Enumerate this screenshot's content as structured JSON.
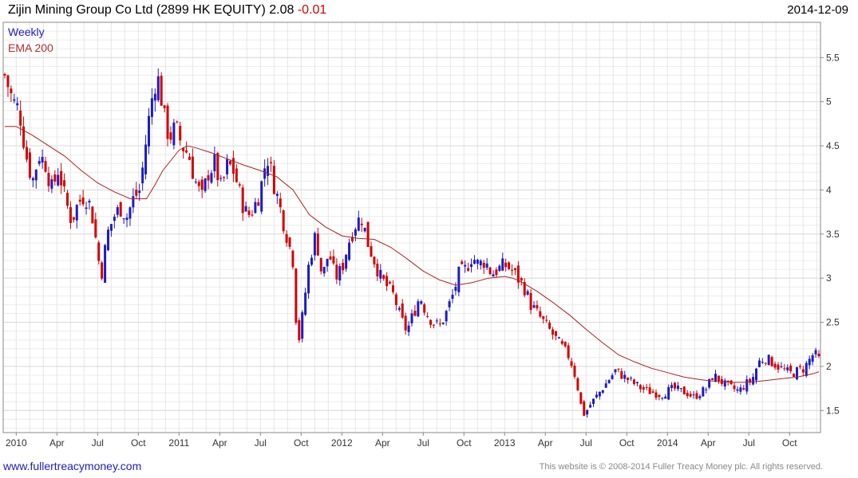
{
  "header": {
    "title": "Zijin Mining Group Co Ltd (2899 HK EQUITY)",
    "price": "2.08",
    "change": "-0.01",
    "date": "2014-12-09"
  },
  "legend": {
    "weekly": "Weekly",
    "ema": "EMA 200"
  },
  "footer": {
    "link": "www.fullertreacymoney.com",
    "copyright": "This website is © 2008-2014 Fuller Treacy Money plc. All rights reserved."
  },
  "colors": {
    "up": "#1c1cc8",
    "down": "#d40000",
    "ema": "#b02020",
    "grid": "#d9d9d9"
  },
  "chart_data": {
    "type": "candlestick",
    "frequency": "weekly",
    "y_ticks": [
      1.5,
      2,
      2.5,
      3,
      3.5,
      4,
      4.5,
      5,
      5.5
    ],
    "ylim": [
      1.25,
      5.9
    ],
    "x_ticks": [
      "2010",
      "Apr",
      "Jul",
      "Oct",
      "2011",
      "Apr",
      "Jul",
      "Oct",
      "2012",
      "Apr",
      "Jul",
      "Oct",
      "2013",
      "Apr",
      "Jul",
      "Oct",
      "2014",
      "Apr",
      "Jul",
      "Oct"
    ],
    "x_tick_years": [
      2010,
      2010.25,
      2010.5,
      2010.75,
      2011,
      2011.25,
      2011.5,
      2011.75,
      2012,
      2012.25,
      2012.5,
      2012.75,
      2013,
      2013.25,
      2013.5,
      2013.75,
      2014,
      2014.25,
      2014.5,
      2014.75
    ],
    "x_range": [
      2009.92,
      2014.94
    ],
    "close_path": [
      [
        2009.93,
        5.3
      ],
      [
        2009.98,
        5.0
      ],
      [
        2010.02,
        4.9
      ],
      [
        2010.06,
        4.4
      ],
      [
        2010.1,
        4.1
      ],
      [
        2010.14,
        4.4
      ],
      [
        2010.18,
        4.3
      ],
      [
        2010.22,
        4.0
      ],
      [
        2010.26,
        4.25
      ],
      [
        2010.3,
        3.9
      ],
      [
        2010.34,
        3.65
      ],
      [
        2010.38,
        3.85
      ],
      [
        2010.42,
        3.95
      ],
      [
        2010.46,
        3.8
      ],
      [
        2010.5,
        3.3
      ],
      [
        2010.52,
        3.0
      ],
      [
        2010.56,
        3.5
      ],
      [
        2010.6,
        3.7
      ],
      [
        2010.64,
        3.8
      ],
      [
        2010.68,
        3.7
      ],
      [
        2010.72,
        3.9
      ],
      [
        2010.76,
        4.0
      ],
      [
        2010.8,
        4.6
      ],
      [
        2010.83,
        5.0
      ],
      [
        2010.86,
        5.3
      ],
      [
        2010.88,
        5.2
      ],
      [
        2010.91,
        4.8
      ],
      [
        2010.94,
        4.6
      ],
      [
        2010.98,
        4.7
      ],
      [
        2011.02,
        4.5
      ],
      [
        2011.06,
        4.4
      ],
      [
        2011.1,
        4.1
      ],
      [
        2011.14,
        3.9
      ],
      [
        2011.18,
        4.2
      ],
      [
        2011.22,
        4.3
      ],
      [
        2011.26,
        4.0
      ],
      [
        2011.3,
        4.3
      ],
      [
        2011.34,
        4.2
      ],
      [
        2011.38,
        3.9
      ],
      [
        2011.42,
        3.7
      ],
      [
        2011.46,
        3.8
      ],
      [
        2011.5,
        4.0
      ],
      [
        2011.54,
        4.4
      ],
      [
        2011.58,
        4.1
      ],
      [
        2011.62,
        3.8
      ],
      [
        2011.66,
        3.5
      ],
      [
        2011.7,
        3.2
      ],
      [
        2011.72,
        2.5
      ],
      [
        2011.74,
        2.3
      ],
      [
        2011.76,
        2.6
      ],
      [
        2011.8,
        3.2
      ],
      [
        2011.84,
        3.5
      ],
      [
        2011.88,
        3.0
      ],
      [
        2011.92,
        3.3
      ],
      [
        2011.96,
        3.0
      ],
      [
        2012.0,
        3.1
      ],
      [
        2012.04,
        3.4
      ],
      [
        2012.08,
        3.6
      ],
      [
        2012.12,
        3.7
      ],
      [
        2012.16,
        3.4
      ],
      [
        2012.2,
        3.2
      ],
      [
        2012.24,
        3.0
      ],
      [
        2012.28,
        2.9
      ],
      [
        2012.32,
        2.8
      ],
      [
        2012.36,
        2.55
      ],
      [
        2012.4,
        2.4
      ],
      [
        2012.44,
        2.6
      ],
      [
        2012.48,
        2.8
      ],
      [
        2012.52,
        2.6
      ],
      [
        2012.56,
        2.5
      ],
      [
        2012.6,
        2.45
      ],
      [
        2012.64,
        2.6
      ],
      [
        2012.68,
        2.8
      ],
      [
        2012.72,
        3.05
      ],
      [
        2012.76,
        3.1
      ],
      [
        2012.8,
        3.25
      ],
      [
        2012.84,
        3.15
      ],
      [
        2012.88,
        3.2
      ],
      [
        2012.92,
        3.05
      ],
      [
        2012.96,
        3.1
      ],
      [
        2013.0,
        3.15
      ],
      [
        2013.04,
        3.1
      ],
      [
        2013.08,
        3.0
      ],
      [
        2013.12,
        2.9
      ],
      [
        2013.16,
        2.7
      ],
      [
        2013.2,
        2.6
      ],
      [
        2013.24,
        2.5
      ],
      [
        2013.28,
        2.4
      ],
      [
        2013.32,
        2.3
      ],
      [
        2013.36,
        2.2
      ],
      [
        2013.4,
        2.1
      ],
      [
        2013.44,
        1.85
      ],
      [
        2013.47,
        1.55
      ],
      [
        2013.49,
        1.45
      ],
      [
        2013.52,
        1.55
      ],
      [
        2013.56,
        1.65
      ],
      [
        2013.6,
        1.75
      ],
      [
        2013.64,
        1.85
      ],
      [
        2013.68,
        1.95
      ],
      [
        2013.72,
        1.9
      ],
      [
        2013.76,
        1.85
      ],
      [
        2013.8,
        1.8
      ],
      [
        2013.84,
        1.75
      ],
      [
        2013.88,
        1.72
      ],
      [
        2013.92,
        1.7
      ],
      [
        2013.96,
        1.68
      ],
      [
        2014.0,
        1.72
      ],
      [
        2014.04,
        1.75
      ],
      [
        2014.08,
        1.72
      ],
      [
        2014.12,
        1.7
      ],
      [
        2014.16,
        1.65
      ],
      [
        2014.2,
        1.7
      ],
      [
        2014.24,
        1.75
      ],
      [
        2014.28,
        1.9
      ],
      [
        2014.32,
        1.85
      ],
      [
        2014.36,
        1.78
      ],
      [
        2014.4,
        1.75
      ],
      [
        2014.44,
        1.72
      ],
      [
        2014.48,
        1.8
      ],
      [
        2014.52,
        1.85
      ],
      [
        2014.56,
        2.05
      ],
      [
        2014.6,
        2.1
      ],
      [
        2014.64,
        2.05
      ],
      [
        2014.68,
        2.0
      ],
      [
        2014.72,
        1.95
      ],
      [
        2014.76,
        1.92
      ],
      [
        2014.8,
        1.95
      ],
      [
        2014.84,
        1.98
      ],
      [
        2014.88,
        2.1
      ],
      [
        2014.9,
        2.15
      ],
      [
        2014.93,
        2.08
      ]
    ],
    "ema_200": [
      [
        2009.93,
        4.72
      ],
      [
        2010.0,
        4.72
      ],
      [
        2010.1,
        4.62
      ],
      [
        2010.2,
        4.5
      ],
      [
        2010.3,
        4.38
      ],
      [
        2010.4,
        4.22
      ],
      [
        2010.5,
        4.08
      ],
      [
        2010.6,
        3.98
      ],
      [
        2010.7,
        3.9
      ],
      [
        2010.8,
        3.9
      ],
      [
        2010.85,
        4.05
      ],
      [
        2010.9,
        4.22
      ],
      [
        2011.0,
        4.45
      ],
      [
        2011.05,
        4.5
      ],
      [
        2011.1,
        4.48
      ],
      [
        2011.2,
        4.42
      ],
      [
        2011.3,
        4.35
      ],
      [
        2011.4,
        4.28
      ],
      [
        2011.5,
        4.22
      ],
      [
        2011.6,
        4.15
      ],
      [
        2011.7,
        4.0
      ],
      [
        2011.8,
        3.72
      ],
      [
        2011.9,
        3.58
      ],
      [
        2012.0,
        3.48
      ],
      [
        2012.1,
        3.45
      ],
      [
        2012.2,
        3.44
      ],
      [
        2012.3,
        3.35
      ],
      [
        2012.4,
        3.22
      ],
      [
        2012.5,
        3.08
      ],
      [
        2012.6,
        2.98
      ],
      [
        2012.7,
        2.92
      ],
      [
        2012.8,
        2.95
      ],
      [
        2012.9,
        3.0
      ],
      [
        2013.0,
        3.02
      ],
      [
        2013.05,
        3.0
      ],
      [
        2013.1,
        2.96
      ],
      [
        2013.2,
        2.85
      ],
      [
        2013.3,
        2.72
      ],
      [
        2013.4,
        2.58
      ],
      [
        2013.5,
        2.42
      ],
      [
        2013.6,
        2.27
      ],
      [
        2013.7,
        2.13
      ],
      [
        2013.8,
        2.05
      ],
      [
        2013.9,
        1.98
      ],
      [
        2014.0,
        1.93
      ],
      [
        2014.1,
        1.88
      ],
      [
        2014.2,
        1.85
      ],
      [
        2014.3,
        1.83
      ],
      [
        2014.4,
        1.82
      ],
      [
        2014.5,
        1.82
      ],
      [
        2014.6,
        1.84
      ],
      [
        2014.7,
        1.86
      ],
      [
        2014.8,
        1.88
      ],
      [
        2014.9,
        1.92
      ],
      [
        2014.93,
        1.94
      ]
    ],
    "last": {
      "date": "2014-12-09",
      "close": 2.08,
      "change": -0.01
    }
  }
}
